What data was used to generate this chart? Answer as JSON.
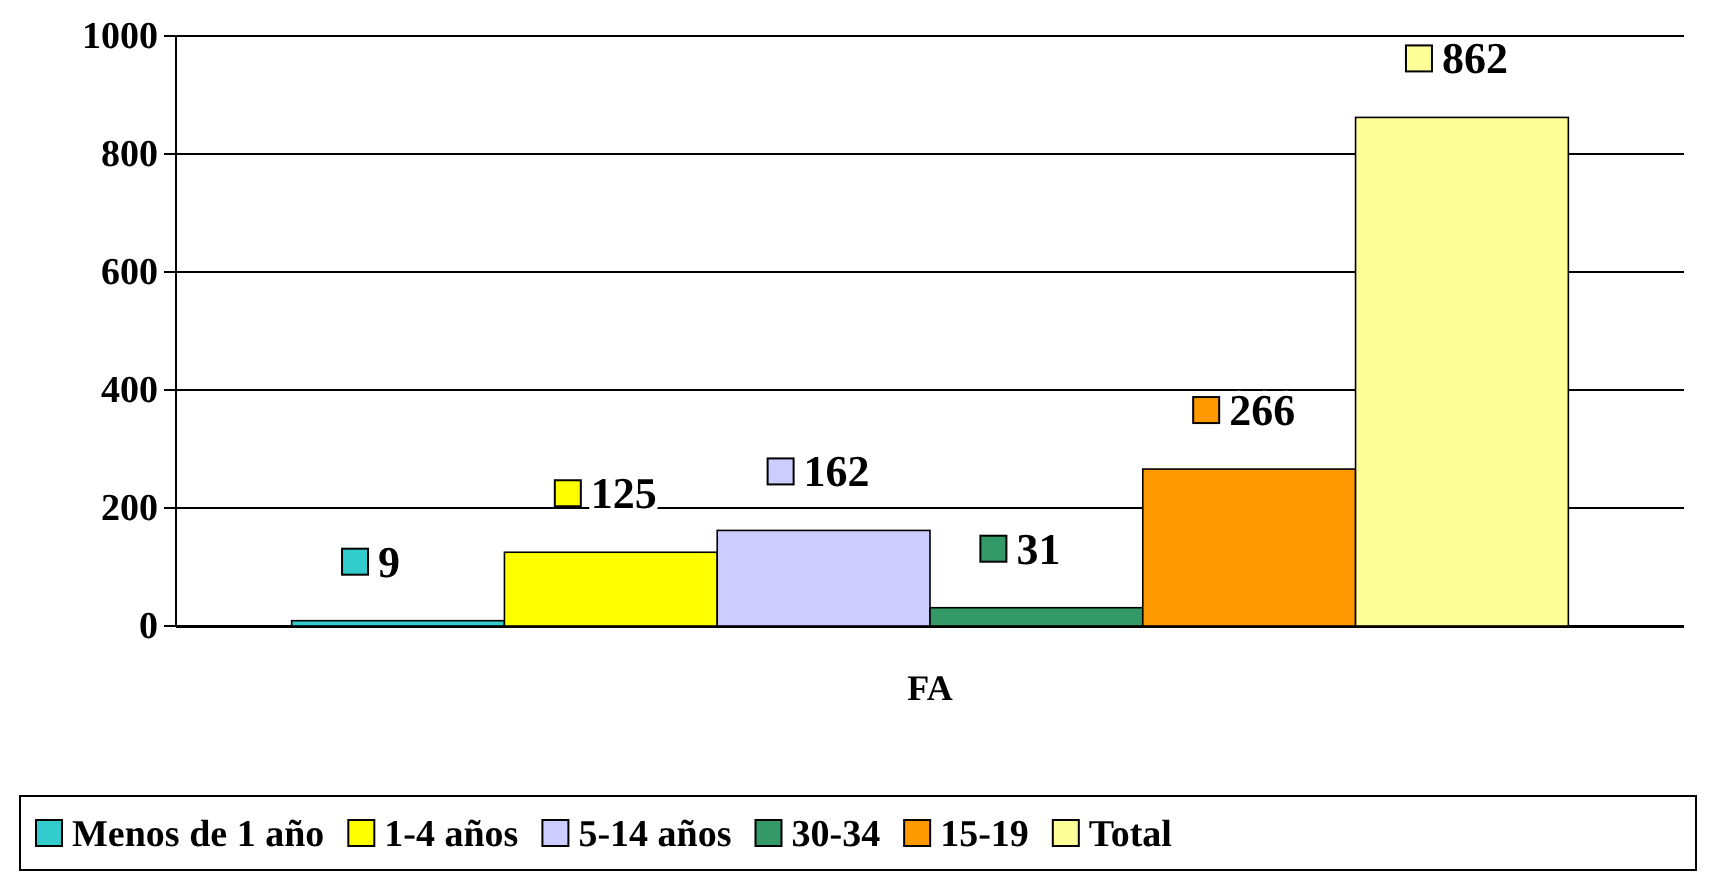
{
  "chart_data": {
    "type": "bar",
    "categories": [
      "FA"
    ],
    "series": [
      {
        "name": "Menos de 1 año",
        "color": "#33cccc",
        "values": [
          9
        ]
      },
      {
        "name": "1-4 años",
        "color": "#ffff00",
        "values": [
          125
        ]
      },
      {
        "name": "5-14 años",
        "color": "#ccccff",
        "values": [
          162
        ]
      },
      {
        "name": "30-34",
        "color": "#339966",
        "values": [
          31
        ]
      },
      {
        "name": "15-19",
        "color": "#ff9900",
        "values": [
          266
        ]
      },
      {
        "name": "Total",
        "color": "#ffff99",
        "values": [
          862
        ]
      }
    ],
    "ylim": [
      0,
      1000
    ],
    "yticks": [
      0,
      200,
      400,
      600,
      800,
      1000
    ],
    "grid": "y",
    "legend": "bottom",
    "data_labels": true
  }
}
